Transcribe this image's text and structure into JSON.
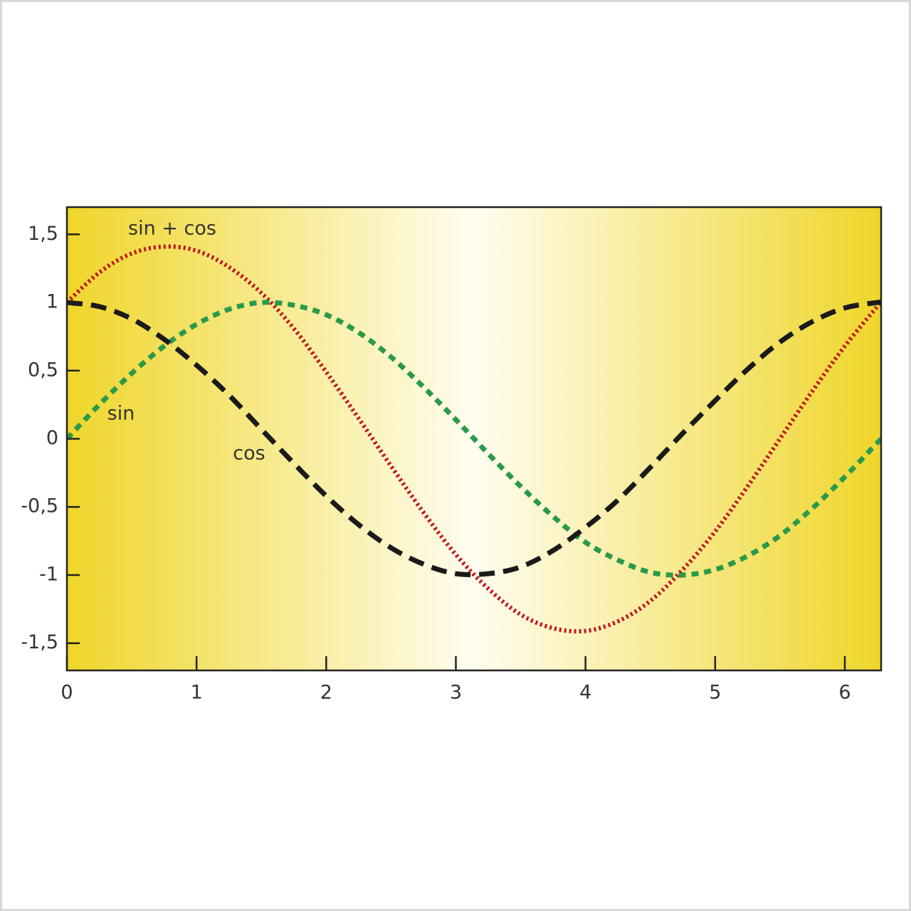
{
  "chart_data": {
    "type": "line",
    "x": [
      0,
      0.25,
      0.5,
      0.75,
      1,
      1.25,
      1.5,
      1.75,
      2,
      2.25,
      2.5,
      2.75,
      3,
      3.25,
      3.5,
      3.75,
      4,
      4.25,
      4.5,
      4.75,
      5,
      5.25,
      5.5,
      5.75,
      6,
      6.25,
      6.28
    ],
    "series": [
      {
        "name": "sin + cos",
        "color": "#c0141e",
        "style": "dotted",
        "values": [
          1,
          1.22,
          1.36,
          1.41,
          1.38,
          1.26,
          1.07,
          0.81,
          0.49,
          0.15,
          -0.2,
          -0.54,
          -0.85,
          -1.1,
          -1.29,
          -1.39,
          -1.41,
          -1.34,
          -1.19,
          -0.96,
          -0.68,
          -0.35,
          0,
          0.35,
          0.68,
          0.97,
          1
        ]
      },
      {
        "name": "sin",
        "color": "#2a9a4a",
        "style": "dashed-short",
        "values": [
          0,
          0.25,
          0.48,
          0.68,
          0.84,
          0.95,
          1,
          0.98,
          0.91,
          0.78,
          0.6,
          0.38,
          0.14,
          -0.11,
          -0.35,
          -0.57,
          -0.76,
          -0.89,
          -0.98,
          -1,
          -0.96,
          -0.86,
          -0.71,
          -0.51,
          -0.28,
          -0.03,
          0
        ]
      },
      {
        "name": "cos",
        "color": "#1a1a1a",
        "style": "dashed",
        "values": [
          1,
          0.97,
          0.88,
          0.73,
          0.54,
          0.32,
          0.07,
          -0.18,
          -0.42,
          -0.63,
          -0.8,
          -0.92,
          -0.99,
          -0.99,
          -0.94,
          -0.82,
          -0.65,
          -0.45,
          -0.21,
          0.04,
          0.28,
          0.51,
          0.71,
          0.86,
          0.96,
          1,
          1
        ]
      }
    ],
    "xlim": [
      0,
      6.28
    ],
    "xticks": [
      0,
      1,
      2,
      3,
      4,
      5,
      6
    ],
    "ylim": [
      -1.7,
      1.7
    ],
    "yticks": [
      {
        "value": -1.5,
        "label": "-1,5"
      },
      -1,
      {
        "value": -0.5,
        "label": "-0,5"
      },
      0,
      {
        "value": 0.5,
        "label": "0,5"
      },
      1,
      {
        "value": 1.5,
        "label": "1,5"
      }
    ]
  }
}
